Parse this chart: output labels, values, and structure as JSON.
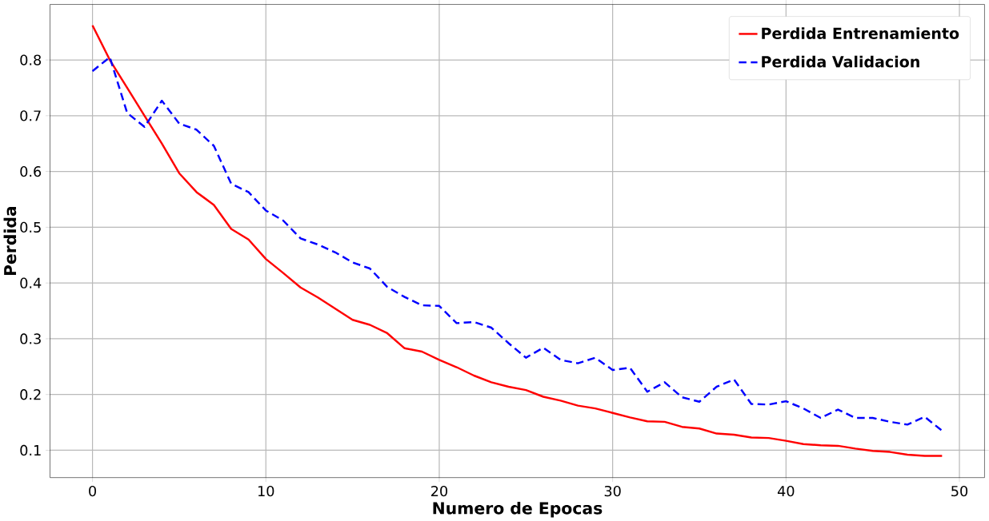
{
  "chart_data": {
    "type": "line",
    "xlabel": "Numero de Epocas",
    "ylabel": "Perdida",
    "x": [
      0,
      1,
      2,
      3,
      4,
      5,
      6,
      7,
      8,
      9,
      10,
      11,
      12,
      13,
      14,
      15,
      16,
      17,
      18,
      19,
      20,
      21,
      22,
      23,
      24,
      25,
      26,
      27,
      28,
      29,
      30,
      31,
      32,
      33,
      34,
      35,
      36,
      37,
      38,
      39,
      40,
      41,
      42,
      43,
      44,
      45,
      46,
      47,
      48,
      49
    ],
    "series": [
      {
        "name": "Perdida Entrenamiento",
        "color": "#ff0000",
        "line_style": "solid",
        "values": [
          0.862,
          0.8,
          0.75,
          0.7,
          0.65,
          0.597,
          0.563,
          0.54,
          0.497,
          0.478,
          0.443,
          0.418,
          0.392,
          0.374,
          0.354,
          0.334,
          0.325,
          0.31,
          0.283,
          0.277,
          0.262,
          0.249,
          0.234,
          0.222,
          0.214,
          0.208,
          0.196,
          0.189,
          0.18,
          0.175,
          0.167,
          0.159,
          0.152,
          0.151,
          0.142,
          0.139,
          0.13,
          0.128,
          0.123,
          0.122,
          0.117,
          0.111,
          0.109,
          0.108,
          0.103,
          0.099,
          0.097,
          0.092,
          0.09,
          0.09
        ]
      },
      {
        "name": "Perdida Validacion",
        "color": "#0000ff",
        "line_style": "dashed",
        "values": [
          0.78,
          0.805,
          0.705,
          0.68,
          0.727,
          0.686,
          0.675,
          0.646,
          0.578,
          0.563,
          0.53,
          0.512,
          0.48,
          0.469,
          0.455,
          0.437,
          0.426,
          0.393,
          0.375,
          0.36,
          0.359,
          0.328,
          0.33,
          0.32,
          0.292,
          0.266,
          0.284,
          0.262,
          0.256,
          0.266,
          0.244,
          0.248,
          0.205,
          0.222,
          0.195,
          0.187,
          0.214,
          0.227,
          0.183,
          0.182,
          0.188,
          0.175,
          0.158,
          0.173,
          0.158,
          0.158,
          0.151,
          0.146,
          0.16,
          0.135
        ]
      }
    ],
    "xlim": [
      -2.45,
      51.45
    ],
    "ylim": [
      0.051,
      0.8996
    ],
    "xticks": [
      0,
      10,
      20,
      30,
      40,
      50
    ],
    "yticks": [
      0.1,
      0.2,
      0.3,
      0.4,
      0.5,
      0.6,
      0.7,
      0.8
    ],
    "grid": true,
    "legend": "top right",
    "marker": "none"
  }
}
